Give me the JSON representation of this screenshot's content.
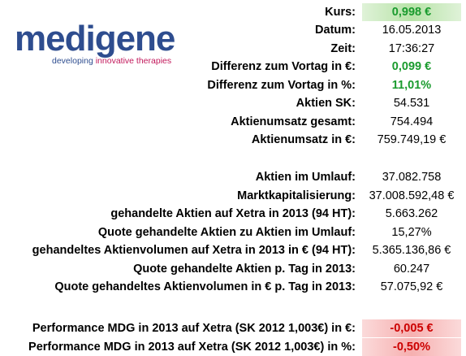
{
  "logo": {
    "word": "medigene",
    "tagline_a": "developing ",
    "tagline_b": "innovative therapies"
  },
  "rows": [
    {
      "label": "Kurs:",
      "value": "0,998 €",
      "style": "good-green"
    },
    {
      "label": "Datum:",
      "value": "16.05.2013",
      "style": ""
    },
    {
      "label": "Zeit:",
      "value": "17:36:27",
      "style": ""
    },
    {
      "label": "Differenz zum Vortag in €:",
      "value": "0,099 €",
      "style": "good"
    },
    {
      "label": "Differenz zum Vortag in %:",
      "value": "11,01%",
      "style": "good"
    },
    {
      "label": "Aktien SK:",
      "value": "54.531",
      "style": ""
    },
    {
      "label": "Aktienumsatz gesamt:",
      "value": "754.494",
      "style": ""
    },
    {
      "label": "Aktienumsatz in €:",
      "value": "759.749,19 €",
      "style": ""
    },
    {
      "label": "Aktien im Umlauf:",
      "value": "37.082.758",
      "style": ""
    },
    {
      "label": "Marktkapitalisierung:",
      "value": "37.008.592,48 €",
      "style": ""
    },
    {
      "label": "gehandelte Aktien auf Xetra in 2013 (94 HT):",
      "value": "5.663.262",
      "style": ""
    },
    {
      "label": "Quote gehandelte Aktien zu Aktien im Umlauf:",
      "value": "15,27%",
      "style": ""
    },
    {
      "label": "gehandeltes Aktienvolumen auf Xetra in 2013 in € (94 HT):",
      "value": "5.365.136,86 €",
      "style": ""
    },
    {
      "label": "Quote gehandelte Aktien p. Tag in 2013:",
      "value": "60.247",
      "style": ""
    },
    {
      "label": "Quote gehandeltes Aktienvolumen in € p. Tag in 2013:",
      "value": "57.075,92 €",
      "style": ""
    },
    {
      "label": "Performance MDG in 2013 auf Xetra (SK 2012 1,003€) in €:",
      "value": "-0,005 €",
      "style": "bad-red"
    },
    {
      "label": "Performance MDG in 2013 auf Xetra (SK 2012 1,003€) in %:",
      "value": "-0,50%",
      "style": "bad-red"
    }
  ],
  "colors": {
    "brand": "#2e4d8f",
    "accent": "#c2185b",
    "positive": "#1a9b2e",
    "negative": "#cc0000"
  }
}
